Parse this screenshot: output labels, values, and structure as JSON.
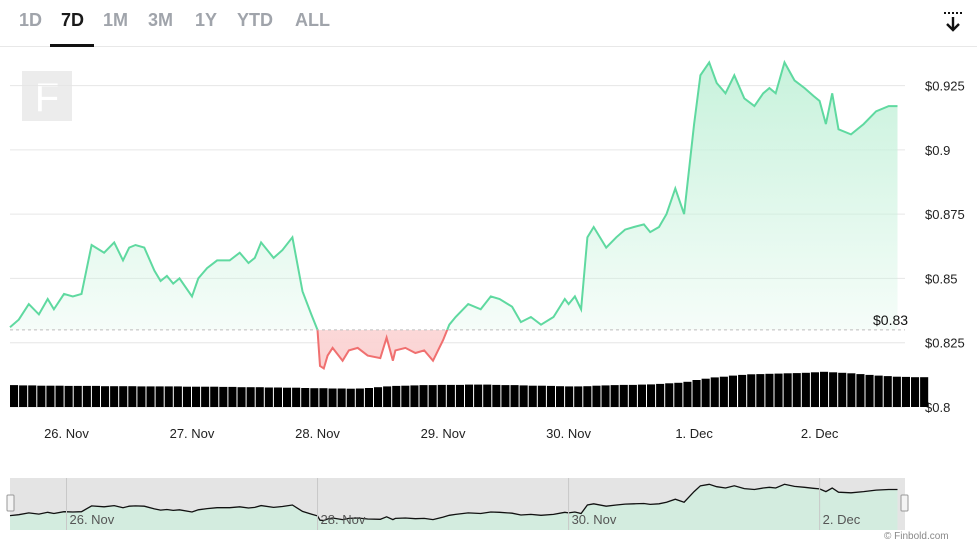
{
  "tabs": [
    {
      "label": "1D",
      "active": false
    },
    {
      "label": "7D",
      "active": true
    },
    {
      "label": "1M",
      "active": false
    },
    {
      "label": "3M",
      "active": false
    },
    {
      "label": "1Y",
      "active": false
    },
    {
      "label": "YTD",
      "active": false
    },
    {
      "label": "ALL",
      "active": false
    }
  ],
  "download_icon": "download-arrow-icon",
  "logo_letter": "F",
  "credit": "© Finbold.com",
  "colors": {
    "up_line": "#5fd9a0",
    "up_fill": "#c8f2dc",
    "down_line": "#f07070",
    "down_fill": "#fbd3d3",
    "volume": "#000000",
    "grid": "#e6e6e6",
    "navigator_bg": "#e4e4e4"
  },
  "chart_data": {
    "type": "area",
    "title": "",
    "reference_price": 0.83,
    "reference_label": "$0.83",
    "y_axis": {
      "ylim": [
        0.8,
        0.94
      ],
      "ticks": [
        0.8,
        0.825,
        0.85,
        0.875,
        0.9,
        0.925
      ],
      "tick_labels": [
        "$0.8",
        "$0.825",
        "$0.85",
        "$0.875",
        "$0.9",
        "$0.925"
      ]
    },
    "x_axis": {
      "xlim": [
        -0.45,
        6.68
      ],
      "tick_positions": [
        0,
        1,
        2,
        3,
        4,
        5,
        6
      ],
      "tick_labels": [
        "26. Nov",
        "27. Nov",
        "28. Nov",
        "29. Nov",
        "30. Nov",
        "1. Dec",
        "2. Dec"
      ]
    },
    "series": [
      {
        "x": [
          -0.45,
          -0.38,
          -0.3,
          -0.22,
          -0.15,
          -0.1,
          -0.02,
          0.05,
          0.12,
          0.2,
          0.3,
          0.38,
          0.45,
          0.5,
          0.55,
          0.62,
          0.7,
          0.75,
          0.8,
          0.85,
          0.9,
          1.0,
          1.05,
          1.12,
          1.2,
          1.3,
          1.38,
          1.45,
          1.5,
          1.55,
          1.65,
          1.72,
          1.8,
          1.88,
          1.95,
          2.0,
          2.02,
          2.05,
          2.08,
          2.12,
          2.2,
          2.25,
          2.32,
          2.4,
          2.5,
          2.55,
          2.6,
          2.62,
          2.7,
          2.78,
          2.85,
          2.92,
          3.0,
          3.05,
          3.1,
          3.2,
          3.3,
          3.38,
          3.45,
          3.55,
          3.62,
          3.7,
          3.78,
          3.88,
          3.97,
          4.0,
          4.05,
          4.1,
          4.15,
          4.2,
          4.3,
          4.38,
          4.45,
          4.52,
          4.6,
          4.65,
          4.72,
          4.78,
          4.85,
          4.92,
          5.0,
          5.05,
          5.12,
          5.18,
          5.25,
          5.32,
          5.4,
          5.48,
          5.55,
          5.6,
          5.65,
          5.72,
          5.8,
          5.88,
          5.95,
          6.0,
          6.05,
          6.1,
          6.15,
          6.25,
          6.35,
          6.45,
          6.55,
          6.62
        ],
        "values": [
          0.831,
          0.834,
          0.84,
          0.836,
          0.842,
          0.838,
          0.844,
          0.843,
          0.844,
          0.863,
          0.86,
          0.864,
          0.857,
          0.862,
          0.863,
          0.862,
          0.853,
          0.849,
          0.851,
          0.848,
          0.85,
          0.843,
          0.85,
          0.854,
          0.857,
          0.857,
          0.86,
          0.856,
          0.858,
          0.864,
          0.858,
          0.861,
          0.866,
          0.845,
          0.836,
          0.83,
          0.816,
          0.815,
          0.82,
          0.823,
          0.818,
          0.822,
          0.823,
          0.82,
          0.819,
          0.827,
          0.818,
          0.822,
          0.823,
          0.821,
          0.822,
          0.818,
          0.826,
          0.832,
          0.835,
          0.84,
          0.838,
          0.843,
          0.842,
          0.839,
          0.833,
          0.835,
          0.832,
          0.835,
          0.842,
          0.84,
          0.843,
          0.838,
          0.866,
          0.87,
          0.862,
          0.866,
          0.869,
          0.87,
          0.871,
          0.868,
          0.87,
          0.875,
          0.885,
          0.875,
          0.91,
          0.929,
          0.934,
          0.926,
          0.922,
          0.929,
          0.92,
          0.917,
          0.922,
          0.924,
          0.922,
          0.934,
          0.927,
          0.924,
          0.921,
          0.919,
          0.91,
          0.922,
          0.908,
          0.906,
          0.91,
          0.915,
          0.917,
          0.917
        ]
      }
    ],
    "volume": {
      "x_start": -0.45,
      "x_step": 0.0725,
      "values": [
        0.0085,
        0.0084,
        0.0084,
        0.0083,
        0.0083,
        0.0083,
        0.0082,
        0.0082,
        0.0082,
        0.0082,
        0.0081,
        0.0081,
        0.0081,
        0.0081,
        0.008,
        0.008,
        0.008,
        0.008,
        0.008,
        0.0079,
        0.0079,
        0.0079,
        0.0079,
        0.0078,
        0.0078,
        0.0077,
        0.0077,
        0.0077,
        0.0076,
        0.0076,
        0.0075,
        0.0075,
        0.0074,
        0.0073,
        0.0073,
        0.0072,
        0.0072,
        0.0071,
        0.0072,
        0.0074,
        0.0077,
        0.008,
        0.0082,
        0.0083,
        0.0084,
        0.0085,
        0.0085,
        0.0086,
        0.0086,
        0.0086,
        0.0087,
        0.0087,
        0.0087,
        0.0086,
        0.0085,
        0.0085,
        0.0084,
        0.0083,
        0.0083,
        0.0082,
        0.0081,
        0.008,
        0.008,
        0.0081,
        0.0083,
        0.0084,
        0.0085,
        0.0086,
        0.0086,
        0.0087,
        0.0088,
        0.009,
        0.0092,
        0.0094,
        0.0098,
        0.0105,
        0.011,
        0.0115,
        0.0118,
        0.0122,
        0.0125,
        0.0127,
        0.0128,
        0.0129,
        0.013,
        0.0131,
        0.0132,
        0.0133,
        0.0135,
        0.0137,
        0.0135,
        0.0133,
        0.0131,
        0.0128,
        0.0125,
        0.0122,
        0.012,
        0.0118,
        0.0117,
        0.0116,
        0.0116
      ]
    }
  },
  "navigator": {
    "tick_labels": [
      "26. Nov",
      "28. Nov",
      "30. Nov",
      "2. Dec"
    ],
    "tick_positions": [
      0,
      2,
      4,
      6
    ]
  }
}
